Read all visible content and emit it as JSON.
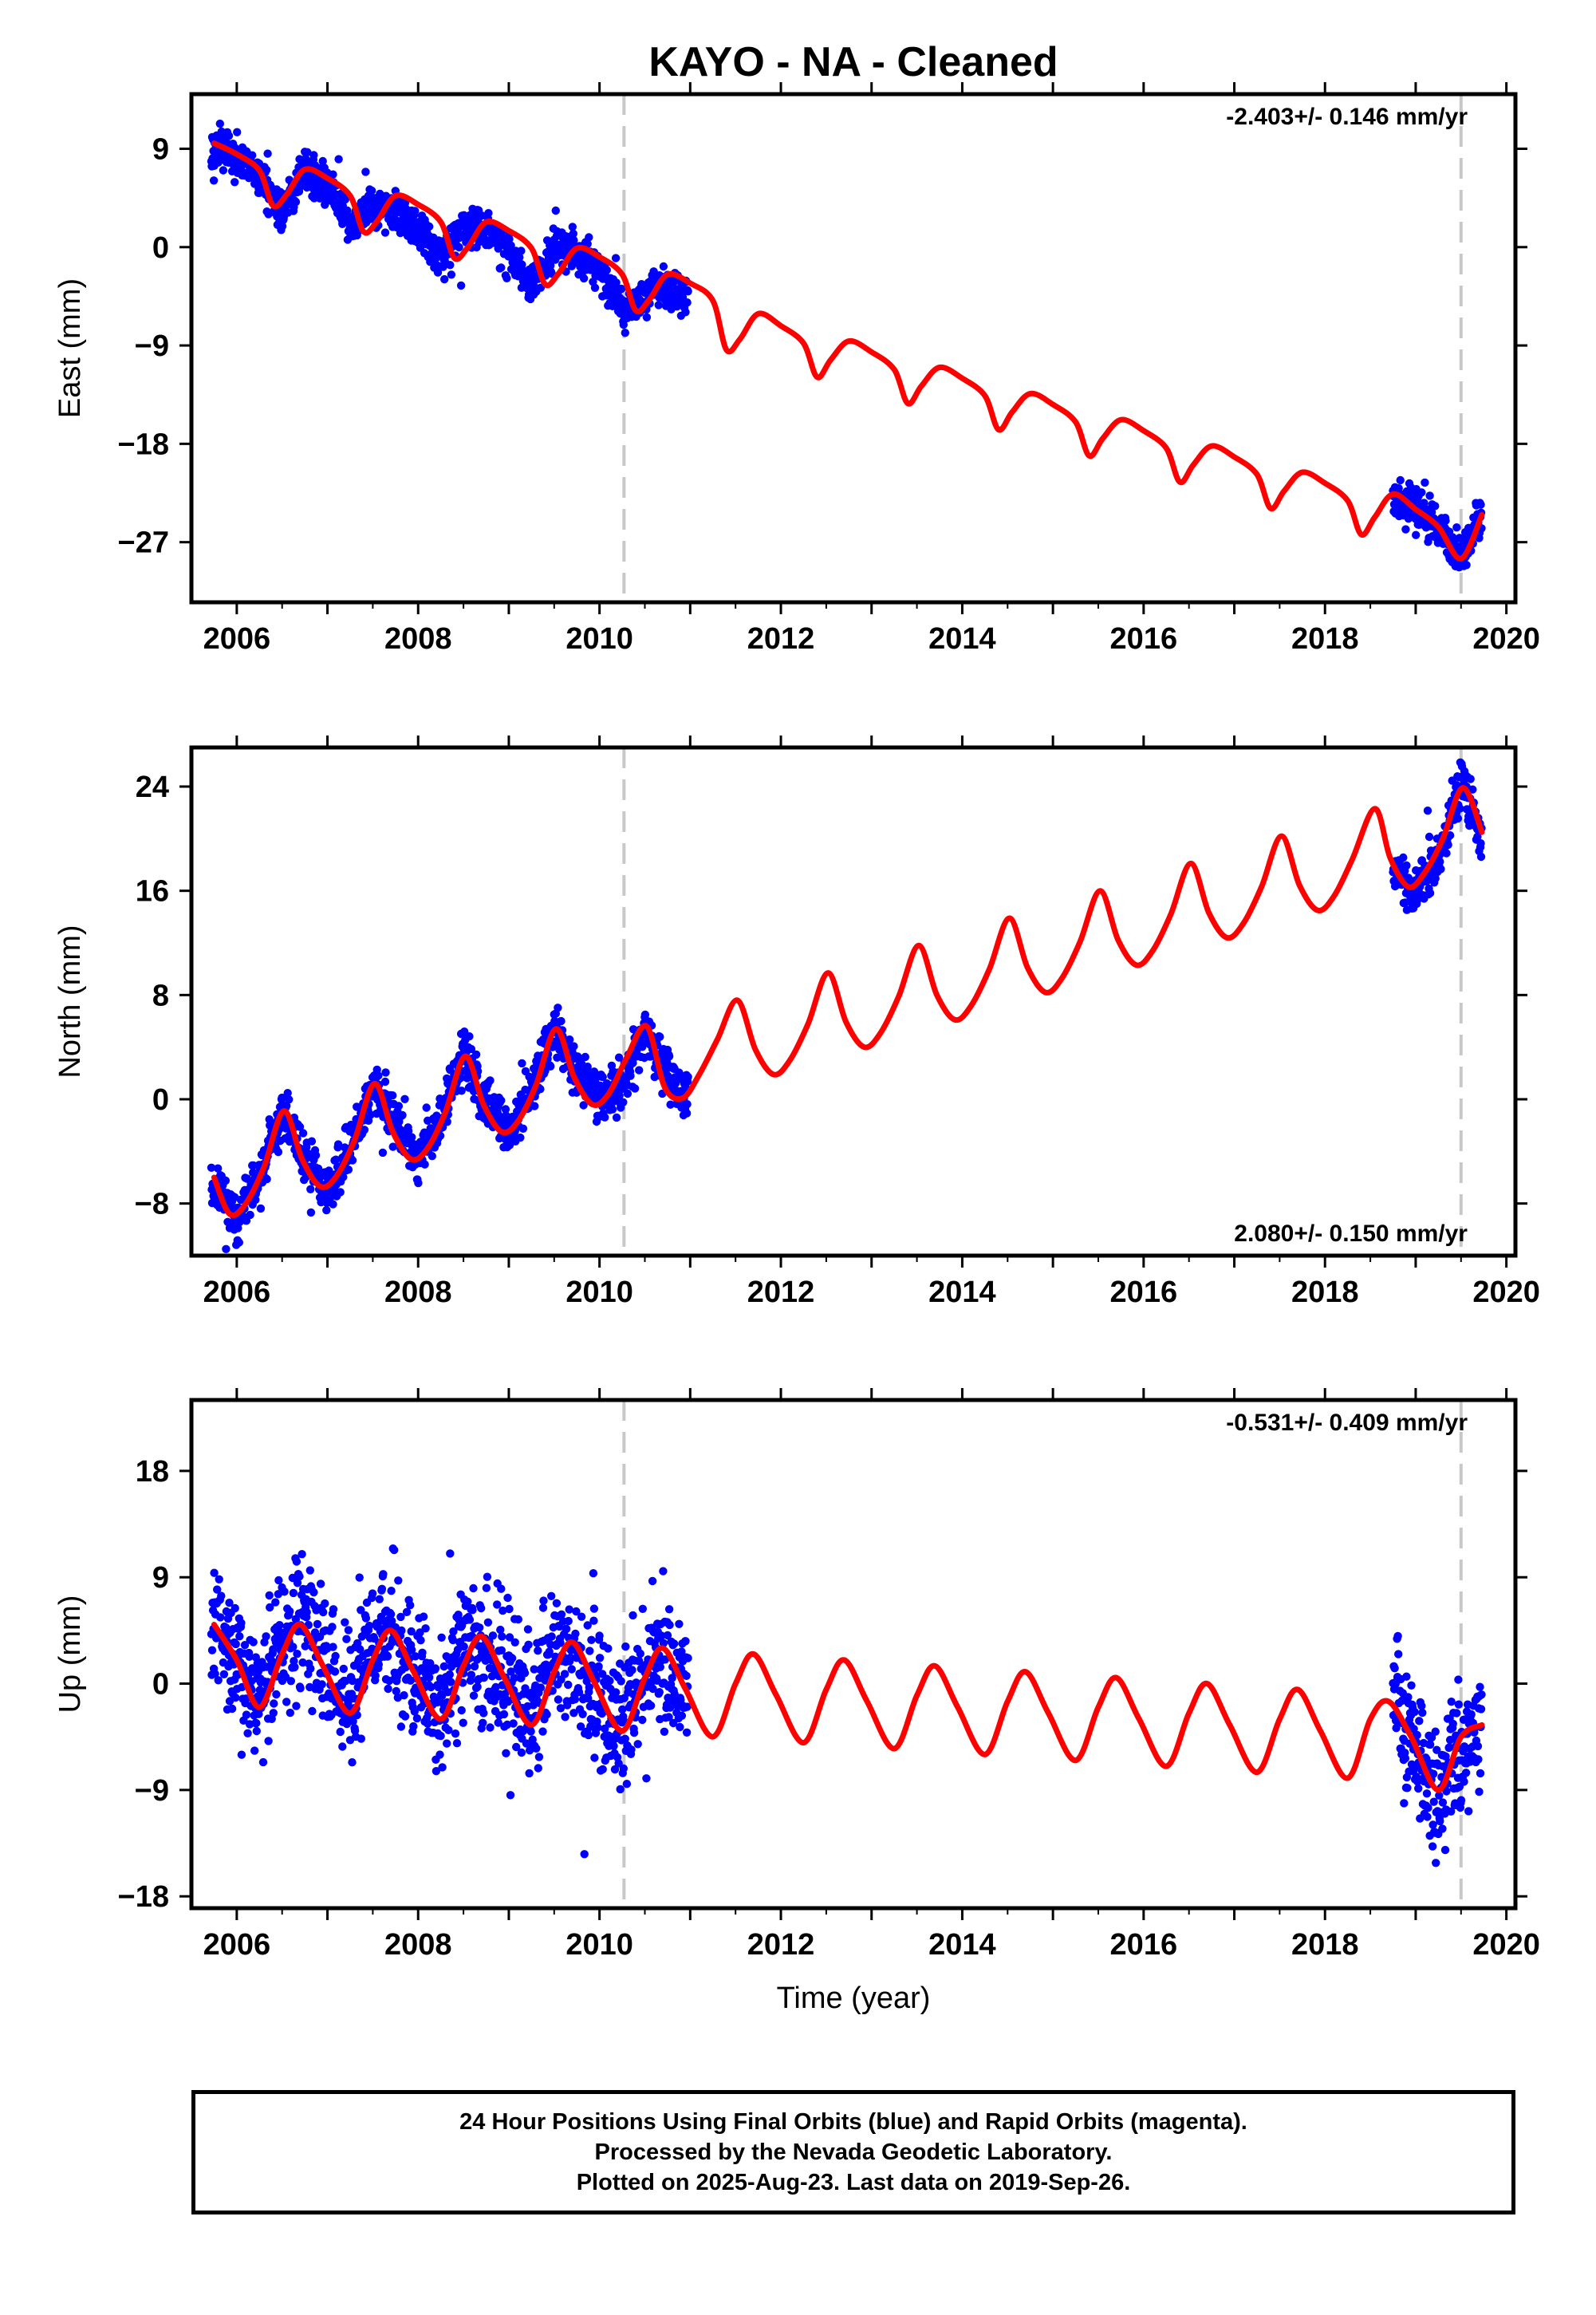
{
  "title": "KAYO  - NA - Cleaned",
  "xlabel": "Time (year)",
  "x_ticks": [
    "2006",
    "2008",
    "2010",
    "2012",
    "2014",
    "2016",
    "2018",
    "2020"
  ],
  "footer": {
    "line1": "24 Hour Positions Using Final Orbits (blue) and Rapid Orbits (magenta).",
    "line2": "Processed by the Nevada Geodetic Laboratory.",
    "line3": "Plotted on 2025-Aug-23. Last data on 2019-Sep-26."
  },
  "colors": {
    "observations": "#0000ff",
    "model": "#ff0000",
    "breaks": "#c8c8c8",
    "frame": "#000000"
  },
  "chart_data": [
    {
      "type": "scatter",
      "component": "East",
      "ylabel": "East (mm)",
      "y_ticks": [
        "9",
        "0",
        "−9",
        "−18",
        "−27"
      ],
      "xlim": [
        2005.5,
        2020.1
      ],
      "ylim": [
        -32.5,
        14
      ],
      "rate_text": "-2.403+/- 0.146 mm/yr",
      "rate_position": "top-right",
      "grid": false,
      "vertical_dashed_lines": [
        2010.27,
        2019.5
      ],
      "observation_spans": [
        [
          2005.72,
          2010.98
        ],
        [
          2018.75,
          2019.73
        ]
      ],
      "series": [
        {
          "name": "Final Orbits (blue)",
          "x": [
            2005.75,
            2006.0,
            2006.25,
            2006.5,
            2006.75,
            2007.0,
            2007.25,
            2007.5,
            2007.75,
            2008.0,
            2008.25,
            2008.5,
            2008.75,
            2009.0,
            2009.25,
            2009.5,
            2009.75,
            2010.0,
            2010.25,
            2010.5,
            2010.75,
            2010.95,
            2018.8,
            2019.0,
            2019.25,
            2019.5,
            2019.7
          ],
          "y": [
            9.5,
            8.0,
            6.5,
            3.0,
            7.0,
            5.5,
            2.0,
            3.5,
            3.5,
            1.5,
            -1.0,
            2.0,
            1.5,
            -0.5,
            -3.5,
            0.0,
            -0.5,
            -2.0,
            -5.5,
            -4.5,
            -3.5,
            -4.5,
            -23.0,
            -24.0,
            -25.5,
            -28.5,
            -24.5
          ]
        },
        {
          "name": "Model",
          "x": [
            2005.75,
            2006.0,
            2006.25,
            2006.4,
            2006.55,
            2006.75,
            2007.0,
            2007.25,
            2007.4,
            2007.55,
            2007.75,
            2008.0,
            2008.25,
            2008.4,
            2008.55,
            2008.75,
            2009.0,
            2009.25,
            2009.4,
            2009.55,
            2009.75,
            2010.0,
            2010.25,
            2010.4,
            2010.55,
            2010.75,
            2011.0,
            2011.25,
            2011.4,
            2011.55,
            2011.75,
            2012.0,
            2012.25,
            2012.4,
            2012.55,
            2012.75,
            2013.0,
            2013.25,
            2013.4,
            2013.55,
            2013.75,
            2014.0,
            2014.25,
            2014.4,
            2014.55,
            2014.75,
            2015.0,
            2015.25,
            2015.4,
            2015.55,
            2015.75,
            2016.0,
            2016.25,
            2016.4,
            2016.55,
            2016.75,
            2017.0,
            2017.25,
            2017.4,
            2017.55,
            2017.75,
            2018.0,
            2018.25,
            2018.4,
            2018.55,
            2018.75,
            2019.0,
            2019.25,
            2019.5,
            2019.73
          ],
          "y": [
            9.5,
            8.5,
            7.0,
            3.8,
            4.8,
            7.1,
            6.3,
            4.7,
            1.4,
            2.4,
            4.7,
            3.9,
            2.3,
            -1.0,
            0.0,
            2.3,
            1.5,
            -0.1,
            -3.4,
            -2.4,
            -0.1,
            -0.9,
            -2.5,
            -5.8,
            -4.8,
            -2.5,
            -3.3,
            -4.9,
            -9.4,
            -8.4,
            -6.1,
            -7.2,
            -8.8,
            -11.9,
            -10.3,
            -8.6,
            -9.6,
            -11.2,
            -14.3,
            -12.7,
            -11.0,
            -12.0,
            -13.6,
            -16.7,
            -15.1,
            -13.4,
            -14.4,
            -16.0,
            -19.1,
            -17.5,
            -15.8,
            -16.8,
            -18.4,
            -21.5,
            -19.9,
            -18.2,
            -19.2,
            -20.8,
            -23.9,
            -22.3,
            -20.6,
            -21.6,
            -23.2,
            -26.3,
            -24.7,
            -22.6,
            -24.0,
            -25.6,
            -28.5,
            -24.5
          ]
        }
      ]
    },
    {
      "type": "scatter",
      "component": "North",
      "ylabel": "North (mm)",
      "y_ticks": [
        "24",
        "16",
        "8",
        "0",
        "−8"
      ],
      "xlim": [
        2005.5,
        2020.1
      ],
      "ylim": [
        -12,
        27
      ],
      "rate_text": "2.080+/- 0.150 mm/yr",
      "rate_position": "bottom-right",
      "grid": false,
      "vertical_dashed_lines": [
        2010.27,
        2019.5
      ],
      "observation_spans": [
        [
          2005.72,
          2010.98
        ],
        [
          2018.75,
          2019.73
        ]
      ],
      "series": [
        {
          "name": "Final Orbits (blue)",
          "x": [
            2005.75,
            2006.0,
            2006.25,
            2006.5,
            2006.75,
            2007.0,
            2007.25,
            2007.5,
            2007.75,
            2008.0,
            2008.25,
            2008.5,
            2008.75,
            2009.0,
            2009.25,
            2009.5,
            2009.75,
            2010.0,
            2010.25,
            2010.5,
            2010.75,
            2010.95,
            2018.8,
            2019.0,
            2019.25,
            2019.5,
            2019.7
          ],
          "y": [
            -7.0,
            -9.0,
            -6.0,
            -1.0,
            -4.5,
            -7.0,
            -4.0,
            1.0,
            -2.0,
            -4.5,
            -1.5,
            3.5,
            0.0,
            -2.5,
            0.5,
            5.5,
            2.0,
            0.0,
            1.0,
            5.5,
            2.0,
            0.0,
            17.0,
            16.0,
            18.5,
            24.5,
            21.0
          ]
        },
        {
          "name": "Model",
          "x": [
            2005.75,
            2005.92,
            2006.1,
            2006.3,
            2006.52,
            2006.72,
            2006.92,
            2007.1,
            2007.3,
            2007.52,
            2007.72,
            2007.92,
            2008.1,
            2008.3,
            2008.52,
            2008.72,
            2008.92,
            2009.1,
            2009.3,
            2009.52,
            2009.72,
            2009.92,
            2010.1,
            2010.3,
            2010.52,
            2010.72,
            2010.92,
            2011.1,
            2011.3,
            2011.52,
            2011.72,
            2011.92,
            2012.1,
            2012.3,
            2012.52,
            2012.72,
            2012.92,
            2013.1,
            2013.3,
            2013.52,
            2013.72,
            2013.92,
            2014.1,
            2014.3,
            2014.52,
            2014.72,
            2014.92,
            2015.1,
            2015.3,
            2015.52,
            2015.72,
            2015.92,
            2016.1,
            2016.3,
            2016.52,
            2016.72,
            2016.92,
            2017.1,
            2017.3,
            2017.52,
            2017.72,
            2017.92,
            2018.1,
            2018.3,
            2018.55,
            2018.72,
            2018.92,
            2019.1,
            2019.3,
            2019.52,
            2019.73
          ],
          "y": [
            -6.0,
            -8.8,
            -8.0,
            -5.2,
            -0.9,
            -4.6,
            -6.7,
            -5.9,
            -3.1,
            1.2,
            -2.5,
            -4.6,
            -3.8,
            -1.0,
            3.3,
            -0.4,
            -2.5,
            -1.7,
            1.1,
            5.4,
            1.7,
            -0.4,
            0.4,
            3.2,
            5.6,
            0.9,
            0.1,
            1.9,
            4.6,
            7.6,
            3.8,
            1.9,
            3.0,
            5.8,
            9.7,
            5.9,
            4.0,
            5.1,
            7.9,
            11.8,
            8.0,
            6.1,
            7.2,
            10.0,
            13.9,
            10.1,
            8.2,
            9.3,
            12.1,
            16.0,
            12.2,
            10.3,
            11.4,
            14.2,
            18.1,
            14.3,
            12.4,
            13.5,
            16.3,
            20.2,
            16.4,
            14.5,
            15.6,
            18.4,
            22.3,
            18.5,
            16.3,
            17.4,
            20.0,
            23.9,
            20.5
          ]
        }
      ]
    },
    {
      "type": "scatter",
      "component": "Up",
      "ylabel": "Up (mm)",
      "y_ticks": [
        "18",
        "9",
        "0",
        "−9",
        "−18"
      ],
      "xlim": [
        2005.5,
        2020.1
      ],
      "ylim": [
        -19,
        24
      ],
      "rate_text": "-0.531+/- 0.409 mm/yr",
      "rate_position": "top-right",
      "grid": false,
      "vertical_dashed_lines": [
        2010.27,
        2019.5
      ],
      "observation_spans": [
        [
          2005.72,
          2010.98
        ],
        [
          2018.75,
          2019.73
        ]
      ],
      "series": [
        {
          "name": "Final Orbits (blue)",
          "x": [
            2005.75,
            2006.0,
            2006.25,
            2006.5,
            2006.75,
            2007.0,
            2007.25,
            2007.5,
            2007.75,
            2008.0,
            2008.25,
            2008.5,
            2008.75,
            2009.0,
            2009.25,
            2009.5,
            2009.75,
            2010.0,
            2010.25,
            2010.5,
            2010.75,
            2010.95,
            2018.8,
            2019.0,
            2019.25,
            2019.5,
            2019.7
          ],
          "y": [
            5.0,
            2.0,
            -1.5,
            4.0,
            4.5,
            1.0,
            -2.0,
            4.0,
            3.5,
            0.5,
            -2.5,
            3.5,
            3.0,
            0.0,
            -2.5,
            3.0,
            2.0,
            -1.0,
            -4.0,
            2.5,
            1.5,
            -1.0,
            -1.5,
            -5.0,
            -9.0,
            -5.0,
            -3.5
          ]
        },
        {
          "name": "Model",
          "x": [
            2005.75,
            2006.0,
            2006.25,
            2006.5,
            2006.7,
            2006.95,
            2007.25,
            2007.5,
            2007.7,
            2007.95,
            2008.25,
            2008.5,
            2008.7,
            2008.95,
            2009.25,
            2009.5,
            2009.7,
            2009.95,
            2010.25,
            2010.5,
            2010.7,
            2010.95,
            2011.25,
            2011.5,
            2011.7,
            2011.95,
            2012.25,
            2012.5,
            2012.7,
            2012.95,
            2013.25,
            2013.5,
            2013.7,
            2013.95,
            2014.25,
            2014.5,
            2014.7,
            2014.95,
            2015.25,
            2015.5,
            2015.7,
            2015.95,
            2016.25,
            2016.5,
            2016.7,
            2016.95,
            2017.25,
            2017.5,
            2017.7,
            2017.95,
            2018.25,
            2018.5,
            2018.7,
            2018.95,
            2019.25,
            2019.5,
            2019.73
          ],
          "y": [
            5.0,
            2.0,
            -2.0,
            2.5,
            5.0,
            1.5,
            -2.5,
            2.0,
            4.5,
            1.0,
            -3.0,
            1.5,
            4.0,
            0.5,
            -3.5,
            1.0,
            3.5,
            0.0,
            -4.0,
            0.5,
            3.0,
            -0.5,
            -4.5,
            0.0,
            2.5,
            -1.0,
            -5.0,
            -0.5,
            2.0,
            -1.5,
            -5.5,
            -1.0,
            1.5,
            -2.0,
            -6.0,
            -1.5,
            1.0,
            -2.5,
            -6.5,
            -2.0,
            0.5,
            -3.0,
            -7.0,
            -2.5,
            0.0,
            -3.5,
            -7.5,
            -3.0,
            -0.5,
            -4.0,
            -8.0,
            -3.0,
            -1.5,
            -4.5,
            -9.0,
            -4.5,
            -3.5
          ]
        }
      ]
    }
  ]
}
